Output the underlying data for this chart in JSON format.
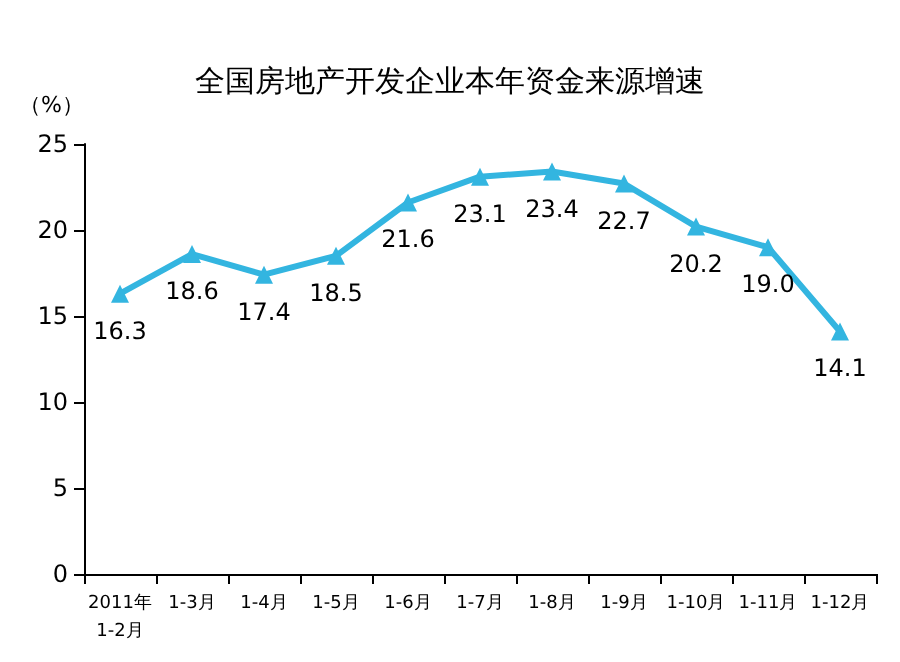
{
  "chart_data": {
    "type": "line",
    "title": "全国房地产开发企业本年资金来源增速",
    "ylabel": "（%）",
    "categories": [
      "2011年\n1-2月",
      "1-3月",
      "1-4月",
      "1-5月",
      "1-6月",
      "1-7月",
      "1-8月",
      "1-9月",
      "1-10月",
      "1-11月",
      "1-12月"
    ],
    "values": [
      16.3,
      18.6,
      17.4,
      18.5,
      21.6,
      23.1,
      23.4,
      22.7,
      20.2,
      19.0,
      14.1
    ],
    "value_labels": [
      "16.3",
      "18.6",
      "17.4",
      "18.5",
      "21.6",
      "23.1",
      "23.4",
      "22.7",
      "20.2",
      "19.0",
      "14.1"
    ],
    "color": "#33b5e0",
    "ylim": [
      0,
      25
    ],
    "yticks": [
      0,
      5,
      10,
      15,
      20,
      25
    ],
    "grid": false,
    "marker": "triangle",
    "line_style": "solid"
  }
}
